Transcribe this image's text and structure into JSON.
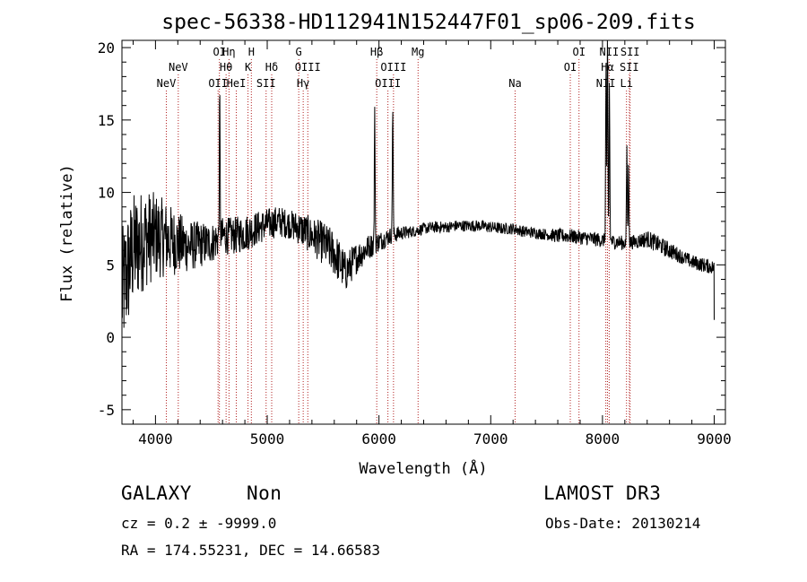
{
  "chart_data": {
    "type": "line",
    "title": "spec-56338-HD112941N152447F01_sp06-209.fits",
    "xlabel": "Wavelength (Å)",
    "ylabel": "Flux (relative)",
    "xlim": [
      3700,
      9100
    ],
    "ylim": [
      -6,
      20.5
    ],
    "xticks": [
      4000,
      5000,
      6000,
      7000,
      8000,
      9000
    ],
    "yticks": [
      -5,
      0,
      5,
      10,
      15,
      20
    ],
    "line_color": "#000000",
    "marker_color": "#b22222",
    "lines": [
      {
        "label": "NeV",
        "x": 4097,
        "row": 3
      },
      {
        "label": "NeV",
        "x": 4204,
        "row": 2
      },
      {
        "label": "OII",
        "x": 4560,
        "row": 3
      },
      {
        "label": "OI",
        "x": 4572,
        "row": 1
      },
      {
        "label": "Hη",
        "x": 4658,
        "row": 1
      },
      {
        "label": "Hθ",
        "x": 4632,
        "row": 2
      },
      {
        "label": "HeI",
        "x": 4723,
        "row": 3
      },
      {
        "label": "H",
        "x": 4858,
        "row": 1
      },
      {
        "label": "K",
        "x": 4828,
        "row": 2
      },
      {
        "label": "Hδ",
        "x": 5040,
        "row": 2
      },
      {
        "label": "SII",
        "x": 4990,
        "row": 3
      },
      {
        "label": "G",
        "x": 5282,
        "row": 1
      },
      {
        "label": "OIII",
        "x": 5363,
        "row": 2
      },
      {
        "label": "Hγ",
        "x": 5322,
        "row": 3
      },
      {
        "label": "Hβ",
        "x": 5980,
        "row": 1
      },
      {
        "label": "OIII",
        "x": 6130,
        "row": 2
      },
      {
        "label": "OIII",
        "x": 6080,
        "row": 3
      },
      {
        "label": "Mg",
        "x": 6350,
        "row": 1
      },
      {
        "label": "Na",
        "x": 7218,
        "row": 3
      },
      {
        "label": "OI",
        "x": 7790,
        "row": 1
      },
      {
        "label": "OI",
        "x": 7712,
        "row": 2
      },
      {
        "label": "NII",
        "x": 8060,
        "row": 1
      },
      {
        "label": "Hα",
        "x": 8045,
        "row": 2
      },
      {
        "label": "NII",
        "x": 8030,
        "row": 3
      },
      {
        "label": "SII",
        "x": 8247,
        "row": 1
      },
      {
        "label": "SII",
        "x": 8240,
        "row": 2
      },
      {
        "label": "Li",
        "x": 8215,
        "row": 3
      }
    ],
    "spectrum_anchors": {
      "x": [
        3700,
        3800,
        3900,
        4000,
        4100,
        4200,
        4300,
        4400,
        4500,
        4600,
        4700,
        4800,
        4900,
        5000,
        5100,
        5200,
        5300,
        5400,
        5500,
        5600,
        5700,
        5800,
        5900,
        6000,
        6100,
        6200,
        6300,
        6400,
        6500,
        6600,
        6700,
        6800,
        6900,
        7000,
        7100,
        7200,
        7300,
        7400,
        7500,
        7600,
        7700,
        7800,
        7900,
        8000,
        8100,
        8200,
        8300,
        8400,
        8500,
        8600,
        8700,
        8800,
        8900,
        9000
      ],
      "y": [
        3.0,
        6.0,
        6.8,
        7.0,
        6.8,
        6.5,
        6.3,
        6.4,
        6.5,
        7.0,
        7.0,
        7.2,
        7.5,
        7.8,
        8.0,
        7.8,
        7.5,
        7.0,
        6.5,
        5.8,
        4.5,
        5.5,
        6.2,
        6.6,
        7.0,
        7.2,
        7.3,
        7.5,
        7.6,
        7.6,
        7.7,
        7.7,
        7.7,
        7.6,
        7.5,
        7.5,
        7.3,
        7.2,
        7.1,
        7.0,
        7.0,
        6.9,
        6.8,
        6.7,
        6.6,
        6.5,
        6.6,
        6.8,
        6.4,
        6.0,
        5.6,
        5.2,
        5.0,
        4.8
      ],
      "noise": [
        4.5,
        4.0,
        3.5,
        3.0,
        2.6,
        2.2,
        1.8,
        1.6,
        1.4,
        1.3,
        1.3,
        1.3,
        1.2,
        1.1,
        1.1,
        1.0,
        1.2,
        1.3,
        1.5,
        1.6,
        1.4,
        1.1,
        0.9,
        0.7,
        0.6,
        0.5,
        0.4,
        0.4,
        0.4,
        0.4,
        0.4,
        0.4,
        0.4,
        0.4,
        0.4,
        0.4,
        0.4,
        0.4,
        0.4,
        0.5,
        0.5,
        0.5,
        0.5,
        0.5,
        0.5,
        0.5,
        0.5,
        0.6,
        0.6,
        0.6,
        0.5,
        0.5,
        0.5,
        0.5
      ]
    },
    "emission_peaks": [
      {
        "x": 4575,
        "height": 16.3
      },
      {
        "x": 5962,
        "height": 15.3
      },
      {
        "x": 6123,
        "height": 16.0
      },
      {
        "x": 8032,
        "height": 18.8
      },
      {
        "x": 8045,
        "height": 20.5
      },
      {
        "x": 8062,
        "height": 17.5
      },
      {
        "x": 8218,
        "height": 12.8
      },
      {
        "x": 8234,
        "height": 11.8
      }
    ]
  },
  "info": {
    "class": "GALAXY",
    "subclass": "Non",
    "survey": "LAMOST DR3",
    "cz": "cz = 0.2 ± -9999.0",
    "obs_date": "Obs-Date: 20130214",
    "coords": "RA = 174.55231, DEC =  14.66583"
  }
}
